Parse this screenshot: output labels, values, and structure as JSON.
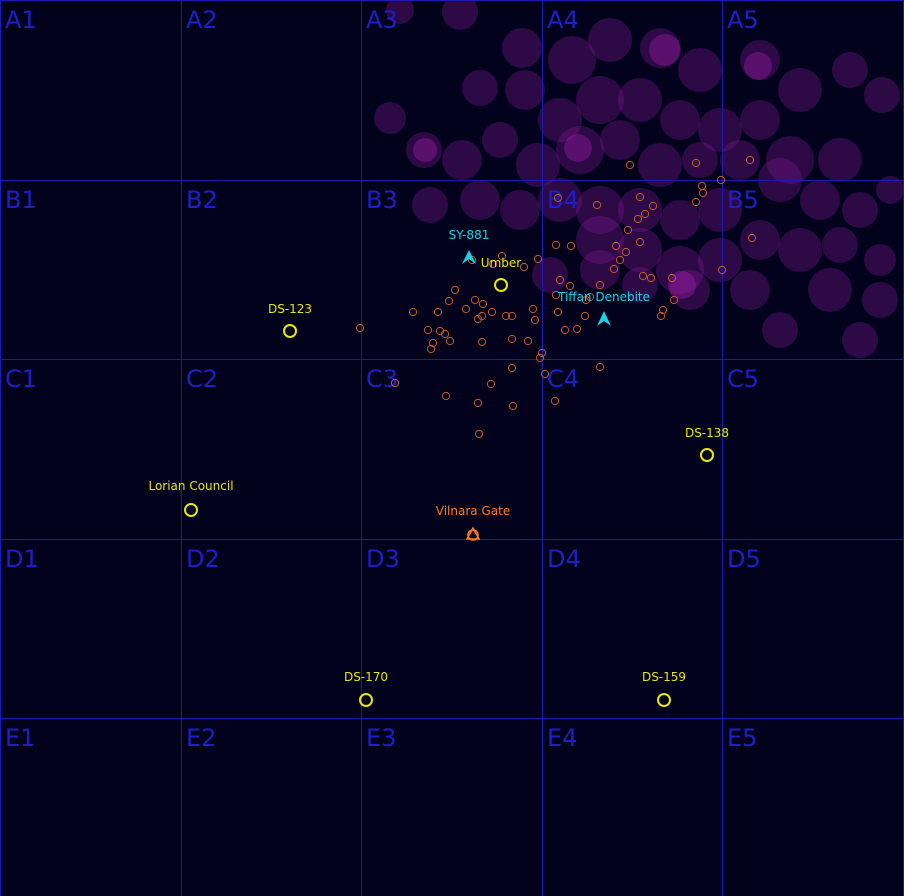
{
  "grid": {
    "rows": [
      "A",
      "B",
      "C",
      "D",
      "E"
    ],
    "cols": [
      "1",
      "2",
      "3",
      "4",
      "5"
    ],
    "cell_labels": [
      "A1",
      "A2",
      "A3",
      "A4",
      "A5",
      "B1",
      "B2",
      "B3",
      "B4",
      "B5",
      "C1",
      "C2",
      "C3",
      "C4",
      "C5",
      "D1",
      "D2",
      "D3",
      "D4",
      "D5",
      "E1",
      "E2",
      "E3",
      "E4",
      "E5"
    ],
    "line_color": "#1c1cb4",
    "label_color": "#1f1fc8",
    "background": "#02021c"
  },
  "stations": [
    {
      "label": "Umber",
      "color": "#e8e800"
    },
    {
      "label": "DS-123",
      "color": "#e8e800"
    },
    {
      "label": "DS-138",
      "color": "#e8e800"
    },
    {
      "label": "Lorian Council",
      "color": "#e8e800"
    },
    {
      "label": "DS-170",
      "color": "#e8e800"
    },
    {
      "label": "DS-159",
      "color": "#e8e800"
    }
  ],
  "gate": {
    "label": "Vilnara Gate",
    "color": "#ff7a1a",
    "icon": "gate-icon"
  },
  "ships": [
    {
      "label": "SY-881",
      "color": "#19d2e6",
      "icon": "ship-arrow-icon"
    },
    {
      "label": "Tiffan Denebite",
      "color": "#19d2e6",
      "icon": "ship-arrow-icon"
    }
  ],
  "colors": {
    "nebula": "#8a1a9c",
    "debris": "#c85a28"
  }
}
